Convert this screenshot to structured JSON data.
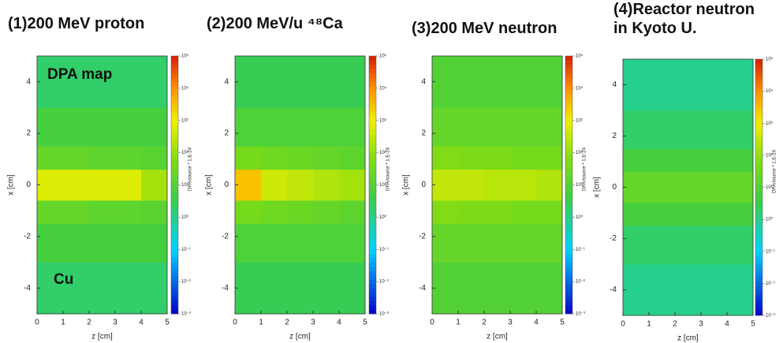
{
  "chart_data": [
    {
      "type": "heatmap",
      "title": "(1)200 MeV proton",
      "xlabel": "z [cm]",
      "ylabel": "x [cm]",
      "annotations": [
        "DPA map",
        "Cu"
      ],
      "xbins": [
        0,
        1,
        2,
        3,
        4,
        5
      ],
      "ybins": [
        -5,
        -3,
        -1.5,
        -0.6,
        0.6,
        1.5,
        3,
        5
      ],
      "values": [
        [
          2,
          2,
          2,
          2,
          2
        ],
        [
          6,
          6,
          6,
          6,
          6
        ],
        [
          20,
          20,
          15,
          15,
          12
        ],
        [
          600,
          600,
          600,
          600,
          150
        ],
        [
          20,
          20,
          15,
          15,
          12
        ],
        [
          6,
          6,
          6,
          6,
          6
        ],
        [
          2,
          2,
          2,
          2,
          2
        ]
      ],
      "xlim": [
        0,
        5
      ],
      "ylim": [
        -5,
        5
      ],
      "xticks": [
        0,
        1,
        2,
        3,
        4,
        5
      ],
      "yticks": [
        -4,
        -2,
        0,
        2,
        4
      ],
      "colorbar": {
        "label": "DPA/source * 1.E-24",
        "scale": "log",
        "lim": [
          0.001,
          100000
        ],
        "ticks": [
          {
            "value": 0.001,
            "label": "10⁻³"
          },
          {
            "value": 0.01,
            "label": "10⁻²"
          },
          {
            "value": 0.1,
            "label": "10⁻¹"
          },
          {
            "value": 1,
            "label": "10⁰"
          },
          {
            "value": 10,
            "label": "10¹"
          },
          {
            "value": 100,
            "label": "10²"
          },
          {
            "value": 1000,
            "label": "10³"
          },
          {
            "value": 10000,
            "label": "10⁴"
          },
          {
            "value": 100000,
            "label": "10⁵"
          }
        ]
      }
    },
    {
      "type": "heatmap",
      "title": "(2)200 MeV/u ⁴⁸Ca",
      "xlabel": "z [cm]",
      "ylabel": "x [cm]",
      "xbins": [
        0,
        1,
        2,
        3,
        4,
        5
      ],
      "ybins": [
        -5,
        -3,
        -1.5,
        -0.6,
        0.6,
        1.5,
        3,
        5
      ],
      "values": [
        [
          3,
          3,
          3,
          3,
          3
        ],
        [
          8,
          8,
          8,
          8,
          8
        ],
        [
          40,
          30,
          25,
          20,
          15
        ],
        [
          3000,
          400,
          300,
          200,
          150
        ],
        [
          40,
          30,
          25,
          20,
          15
        ],
        [
          8,
          8,
          8,
          8,
          8
        ],
        [
          3,
          3,
          3,
          3,
          3
        ]
      ],
      "xlim": [
        0,
        5
      ],
      "ylim": [
        -5,
        5
      ],
      "xticks": [
        0,
        1,
        2,
        3,
        4,
        5
      ],
      "yticks": [
        -4,
        -2,
        0,
        2,
        4
      ],
      "colorbar": {
        "label": "DPA/source * 1.E-24",
        "scale": "log",
        "lim": [
          0.001,
          100000
        ],
        "ticks": [
          {
            "value": 0.001,
            "label": "10⁻³"
          },
          {
            "value": 0.01,
            "label": "10⁻²"
          },
          {
            "value": 0.1,
            "label": "10⁻¹"
          },
          {
            "value": 1,
            "label": "10⁰"
          },
          {
            "value": 10,
            "label": "10¹"
          },
          {
            "value": 100,
            "label": "10²"
          },
          {
            "value": 1000,
            "label": "10³"
          },
          {
            "value": 10000,
            "label": "10⁴"
          },
          {
            "value": 100000,
            "label": "10⁵"
          }
        ]
      }
    },
    {
      "type": "heatmap",
      "title": "(3)200 MeV neutron",
      "xlabel": "z [cm]",
      "ylabel": "x [cm]",
      "xbins": [
        0,
        1,
        2,
        3,
        4,
        5
      ],
      "ybins": [
        -5,
        -3,
        -1.5,
        -0.6,
        0.6,
        1.5,
        3,
        5
      ],
      "values": [
        [
          10,
          10,
          10,
          10,
          10
        ],
        [
          20,
          20,
          20,
          20,
          20
        ],
        [
          60,
          50,
          50,
          40,
          40
        ],
        [
          300,
          300,
          250,
          250,
          200
        ],
        [
          60,
          50,
          50,
          40,
          40
        ],
        [
          20,
          20,
          20,
          20,
          20
        ],
        [
          10,
          10,
          10,
          10,
          10
        ]
      ],
      "xlim": [
        0,
        5
      ],
      "ylim": [
        -5,
        5
      ],
      "xticks": [
        0,
        1,
        2,
        3,
        4,
        5
      ],
      "yticks": [
        -4,
        -2,
        0,
        2,
        4
      ],
      "colorbar": {
        "label": "DPA/source * 1.E-24",
        "scale": "log",
        "lim": [
          0.001,
          100000
        ],
        "ticks": [
          {
            "value": 0.001,
            "label": "10⁻³"
          },
          {
            "value": 0.01,
            "label": "10⁻²"
          },
          {
            "value": 0.1,
            "label": "10⁻¹"
          },
          {
            "value": 1,
            "label": "10⁰"
          },
          {
            "value": 10,
            "label": "10¹"
          },
          {
            "value": 100,
            "label": "10²"
          },
          {
            "value": 1000,
            "label": "10³"
          },
          {
            "value": 10000,
            "label": "10⁴"
          },
          {
            "value": 100000,
            "label": "10⁵"
          }
        ]
      }
    },
    {
      "type": "heatmap",
      "title": "(4)Reactor neutron in Kyoto U.",
      "xlabel": "z [cm]",
      "ylabel": "x [cm]",
      "xbins": [
        0,
        1,
        2,
        3,
        4,
        5
      ],
      "ybins": [
        -5,
        -3,
        -1.5,
        -0.6,
        0.6,
        1.5,
        3,
        5
      ],
      "values": [
        [
          1,
          1,
          1,
          1,
          1
        ],
        [
          2,
          2,
          2,
          2,
          2
        ],
        [
          6,
          6,
          6,
          6,
          6
        ],
        [
          20,
          20,
          20,
          20,
          20
        ],
        [
          6,
          6,
          6,
          6,
          6
        ],
        [
          2,
          2,
          2,
          2,
          2
        ],
        [
          1,
          1,
          1,
          1,
          1
        ]
      ],
      "xlim": [
        0,
        5
      ],
      "ylim": [
        -5,
        5
      ],
      "xticks": [
        0,
        1,
        2,
        3,
        4,
        5
      ],
      "yticks": [
        -4,
        -2,
        0,
        2,
        4
      ],
      "colorbar": {
        "label": "DPA/source * 1.E-24",
        "scale": "log",
        "lim": [
          0.001,
          100000
        ],
        "ticks": [
          {
            "value": 0.001,
            "label": "10⁻³"
          },
          {
            "value": 0.01,
            "label": "10⁻²"
          },
          {
            "value": 0.1,
            "label": "10⁻¹"
          },
          {
            "value": 1,
            "label": "10⁰"
          },
          {
            "value": 10,
            "label": "10¹"
          },
          {
            "value": 100,
            "label": "10²"
          },
          {
            "value": 1000,
            "label": "10³"
          },
          {
            "value": 10000,
            "label": "10⁴"
          },
          {
            "value": 100000,
            "label": "10⁵"
          }
        ]
      }
    }
  ]
}
